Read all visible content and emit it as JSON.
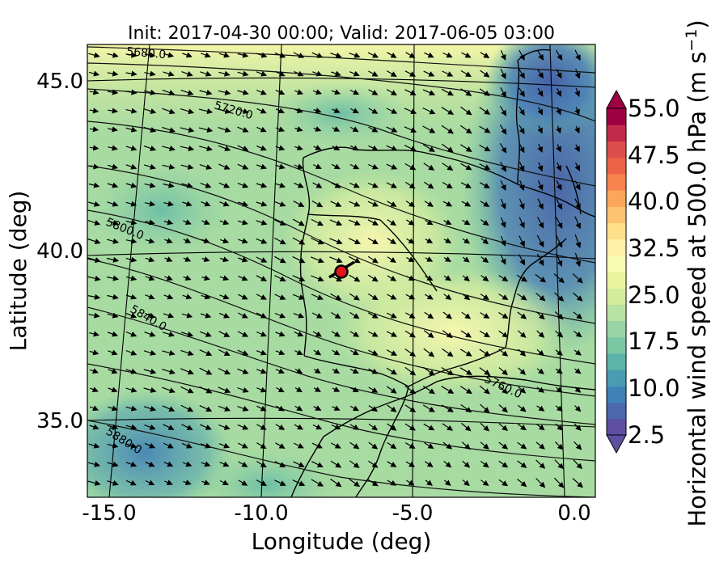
{
  "plot": {
    "title": "Init: 2017-04-30 00:00; Valid: 2017-06-05 03:00",
    "xlabel": "Longitude (deg)",
    "ylabel": "Latitude (deg)",
    "x_ticks": [
      "-15.0",
      "-10.0",
      "-5.0",
      "0.0"
    ],
    "y_ticks": [
      "45.0",
      "40.0",
      "35.0"
    ],
    "contour_labels": [
      "5680.0",
      "5720.0",
      "5800.0",
      "5840.0",
      "5880.0",
      "5760.0"
    ]
  },
  "colorbar": {
    "label": "Horizontal wind speed at 500.0 hPa (m s",
    "label_exponent": "−1",
    "label_close": ")",
    "ticks": [
      "55.0",
      "47.5",
      "40.0",
      "32.5",
      "25.0",
      "17.5",
      "10.0",
      "2.5"
    ],
    "colors": [
      "#5e4fa2",
      "#4d68ae",
      "#3f82b8",
      "#4a9cb3",
      "#5bb3a9",
      "#7ac7a4",
      "#99d4a4",
      "#b7e2a1",
      "#d3ec9c",
      "#e9f59d",
      "#f8fbb2",
      "#fff0a6",
      "#fee08b",
      "#fdc371",
      "#fca65a",
      "#f7844e",
      "#ec6445",
      "#dc4d4b",
      "#c22b4b",
      "#9e0142"
    ]
  },
  "marker": {
    "label": "site-marker",
    "color": "#e8141b"
  },
  "chart_data": {
    "type": "map-contour",
    "variable": "Horizontal wind speed at 500.0 hPa",
    "units": "m s^-1",
    "xlim": [
      -16,
      0.3
    ],
    "ylim": [
      32.8,
      46.3
    ],
    "colorbar_range": [
      2.5,
      55.0
    ],
    "contour_levels": [
      5680.0,
      5720.0,
      5760.0,
      5800.0,
      5840.0,
      5880.0
    ],
    "marker_point": {
      "lon": -7.7,
      "lat": 39.4
    }
  }
}
